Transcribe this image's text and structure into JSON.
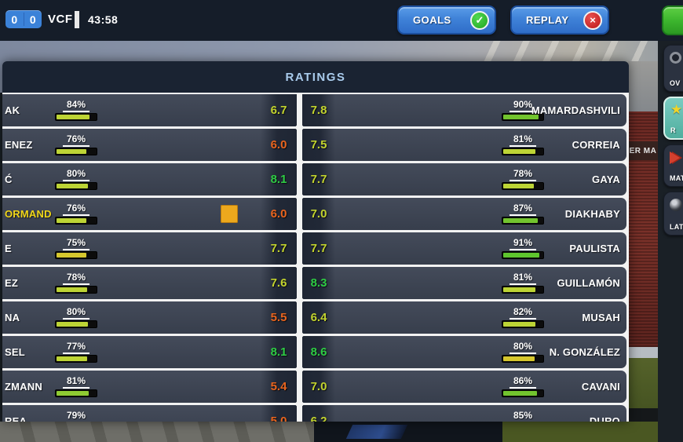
{
  "scoreboard": {
    "home_score": "0",
    "away_score": "0",
    "team_abbr": "VCF",
    "clock": "43:58"
  },
  "top_buttons": {
    "goals_label": "GOALS",
    "replay_label": "REPLAY",
    "check_glyph": "✓",
    "cross_glyph": "×"
  },
  "panel": {
    "title": "RATINGS"
  },
  "left_team_rows": [
    {
      "name": "AK",
      "name_color": "#ffffff",
      "pct": 84,
      "pct_label": "84%",
      "bar_color": "#bdd435",
      "rating": "6.7",
      "rating_color": "#c2d32e",
      "booked": false
    },
    {
      "name": "ENEZ",
      "name_color": "#ffffff",
      "pct": 76,
      "pct_label": "76%",
      "bar_color": "#bdd435",
      "rating": "6.0",
      "rating_color": "#e8641e",
      "booked": false
    },
    {
      "name": "Ć",
      "name_color": "#ffffff",
      "pct": 80,
      "pct_label": "80%",
      "bar_color": "#bdd435",
      "rating": "8.1",
      "rating_color": "#2ecc44",
      "booked": false
    },
    {
      "name": "ORMAND",
      "name_color": "#f0d618",
      "pct": 76,
      "pct_label": "76%",
      "bar_color": "#bdd435",
      "rating": "6.0",
      "rating_color": "#e8641e",
      "booked": true
    },
    {
      "name": "E",
      "name_color": "#ffffff",
      "pct": 75,
      "pct_label": "75%",
      "bar_color": "#d6c72e",
      "rating": "7.7",
      "rating_color": "#c2d32e",
      "booked": false
    },
    {
      "name": "EZ",
      "name_color": "#ffffff",
      "pct": 78,
      "pct_label": "78%",
      "bar_color": "#bdd435",
      "rating": "7.6",
      "rating_color": "#c2d32e",
      "booked": false
    },
    {
      "name": "NA",
      "name_color": "#ffffff",
      "pct": 80,
      "pct_label": "80%",
      "bar_color": "#bdd435",
      "rating": "5.5",
      "rating_color": "#e8641e",
      "booked": false
    },
    {
      "name": "SEL",
      "name_color": "#ffffff",
      "pct": 77,
      "pct_label": "77%",
      "bar_color": "#bdd435",
      "rating": "8.1",
      "rating_color": "#2ecc44",
      "booked": false
    },
    {
      "name": "ZMANN",
      "name_color": "#ffffff",
      "pct": 81,
      "pct_label": "81%",
      "bar_color": "#8fcb32",
      "rating": "5.4",
      "rating_color": "#e8641e",
      "booked": false
    },
    {
      "name": "REA",
      "name_color": "#ffffff",
      "pct": 79,
      "pct_label": "79%",
      "bar_color": "#bdd435",
      "rating": "5.0",
      "rating_color": "#e8641e",
      "booked": false
    }
  ],
  "right_team_rows": [
    {
      "name": "MAMARDASHVILI",
      "name_color": "#ffffff",
      "pct": 90,
      "pct_label": "90%",
      "bar_color": "#72c42e",
      "rating": "7.8",
      "rating_color": "#c2d32e",
      "booked": false
    },
    {
      "name": "CORREIA",
      "name_color": "#ffffff",
      "pct": 81,
      "pct_label": "81%",
      "bar_color": "#bdd435",
      "rating": "7.5",
      "rating_color": "#c2d32e",
      "booked": false
    },
    {
      "name": "GAYA",
      "name_color": "#ffffff",
      "pct": 78,
      "pct_label": "78%",
      "bar_color": "#bdd435",
      "rating": "7.7",
      "rating_color": "#c2d32e",
      "booked": false
    },
    {
      "name": "DIAKHABY",
      "name_color": "#ffffff",
      "pct": 87,
      "pct_label": "87%",
      "bar_color": "#72c42e",
      "rating": "7.0",
      "rating_color": "#c2d32e",
      "booked": false
    },
    {
      "name": "PAULISTA",
      "name_color": "#ffffff",
      "pct": 91,
      "pct_label": "91%",
      "bar_color": "#5ec52e",
      "rating": "7.7",
      "rating_color": "#c2d32e",
      "booked": false
    },
    {
      "name": "GUILLAMÓN",
      "name_color": "#ffffff",
      "pct": 81,
      "pct_label": "81%",
      "bar_color": "#bdd435",
      "rating": "8.3",
      "rating_color": "#2ecc44",
      "booked": false
    },
    {
      "name": "MUSAH",
      "name_color": "#ffffff",
      "pct": 82,
      "pct_label": "82%",
      "bar_color": "#bdd435",
      "rating": "6.4",
      "rating_color": "#c2d32e",
      "booked": false
    },
    {
      "name": "N. GONZÁLEZ",
      "name_color": "#ffffff",
      "pct": 80,
      "pct_label": "80%",
      "bar_color": "#d6c72e",
      "rating": "8.6",
      "rating_color": "#2ecc44",
      "booked": false
    },
    {
      "name": "CAVANI",
      "name_color": "#ffffff",
      "pct": 86,
      "pct_label": "86%",
      "bar_color": "#72c42e",
      "rating": "7.0",
      "rating_color": "#c2d32e",
      "booked": false
    },
    {
      "name": "DURO",
      "name_color": "#ffffff",
      "pct": 85,
      "pct_label": "85%",
      "bar_color": "#72c42e",
      "rating": "6.2",
      "rating_color": "#c2d32e",
      "booked": false
    }
  ],
  "sidebar": {
    "items": [
      {
        "label": "OV",
        "icon": "overview-icon",
        "selected": false
      },
      {
        "label": "R",
        "icon": "ratings-icon",
        "selected": true
      },
      {
        "label": "MAT",
        "icon": "match-icon",
        "selected": false
      },
      {
        "label": "LATE",
        "icon": "latest-icon",
        "selected": false
      }
    ]
  },
  "background": {
    "hoarding_text": "ER MA"
  },
  "colors": {
    "accent_blue": "#3b82d8",
    "button_blue": "#3f82d8",
    "button_green": "#3db62e",
    "rating_green": "#2ecc44",
    "rating_lime": "#c2d32e",
    "rating_orange": "#e8641e",
    "bar_green": "#72c42e",
    "bar_lime": "#bdd435",
    "bar_gold": "#d6c72e",
    "panel_row": "#3c4352",
    "panel_rating_cell": "#1f2634",
    "panel_header_bg": "#1a2332",
    "panel_title_text": "#a9cbec",
    "card_yellow": "#eca81d",
    "selected_tab_teal": "#5fbcae"
  }
}
